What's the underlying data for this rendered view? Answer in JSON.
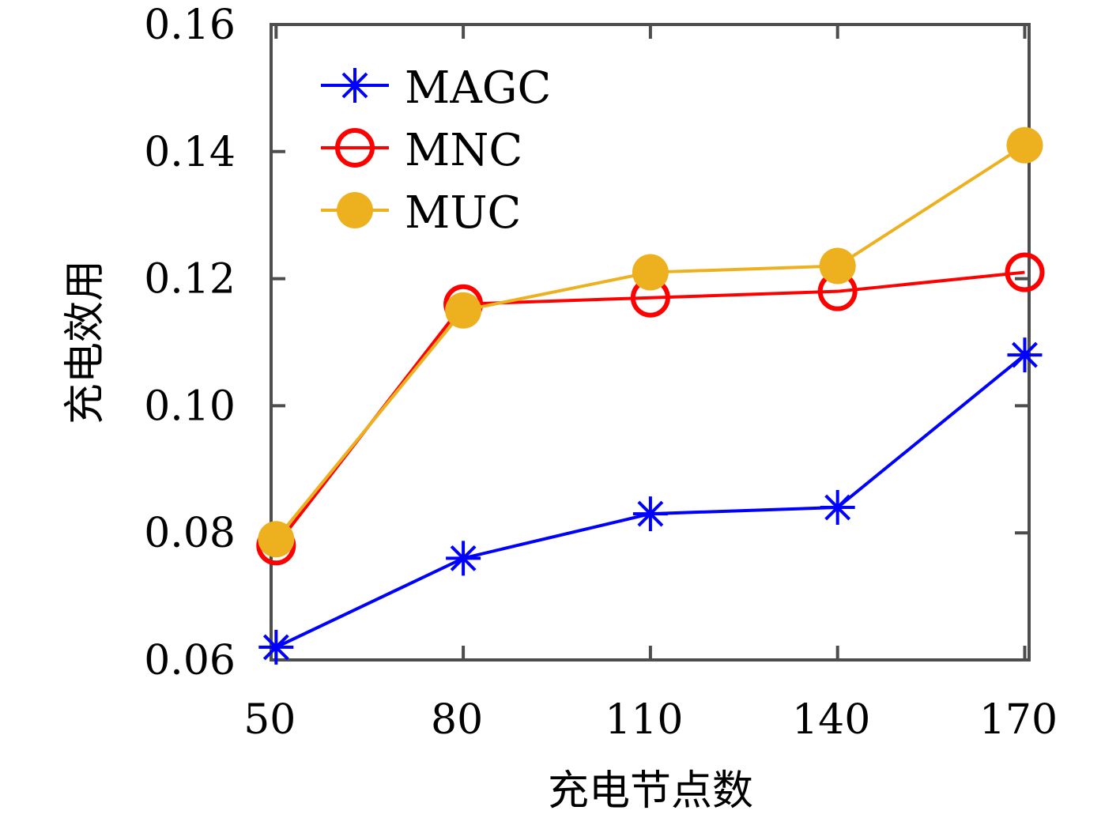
{
  "chart_data": {
    "type": "line",
    "title": "",
    "xlabel": "充电节点数",
    "ylabel": "充电效用",
    "x": [
      50,
      80,
      110,
      140,
      170
    ],
    "xticks": [
      "50",
      "80",
      "110",
      "140",
      "170"
    ],
    "yticks": [
      "0.06",
      "0.08",
      "0.10",
      "0.12",
      "0.14",
      "0.16"
    ],
    "xlim": [
      49.2,
      170.7
    ],
    "ylim": [
      0.06,
      0.16
    ],
    "grid": false,
    "legend_position": "top-left",
    "series": [
      {
        "name": "MAGC",
        "color": "#0000ff",
        "marker": "asterisk",
        "values": [
          0.062,
          0.076,
          0.083,
          0.084,
          0.108
        ]
      },
      {
        "name": "MNC",
        "color": "#ff0000",
        "marker": "open-circle",
        "values": [
          0.078,
          0.116,
          0.117,
          0.118,
          0.121
        ]
      },
      {
        "name": "MUC",
        "color": "#edb120",
        "marker": "filled-circle",
        "values": [
          0.079,
          0.115,
          0.121,
          0.122,
          0.141
        ]
      }
    ]
  }
}
